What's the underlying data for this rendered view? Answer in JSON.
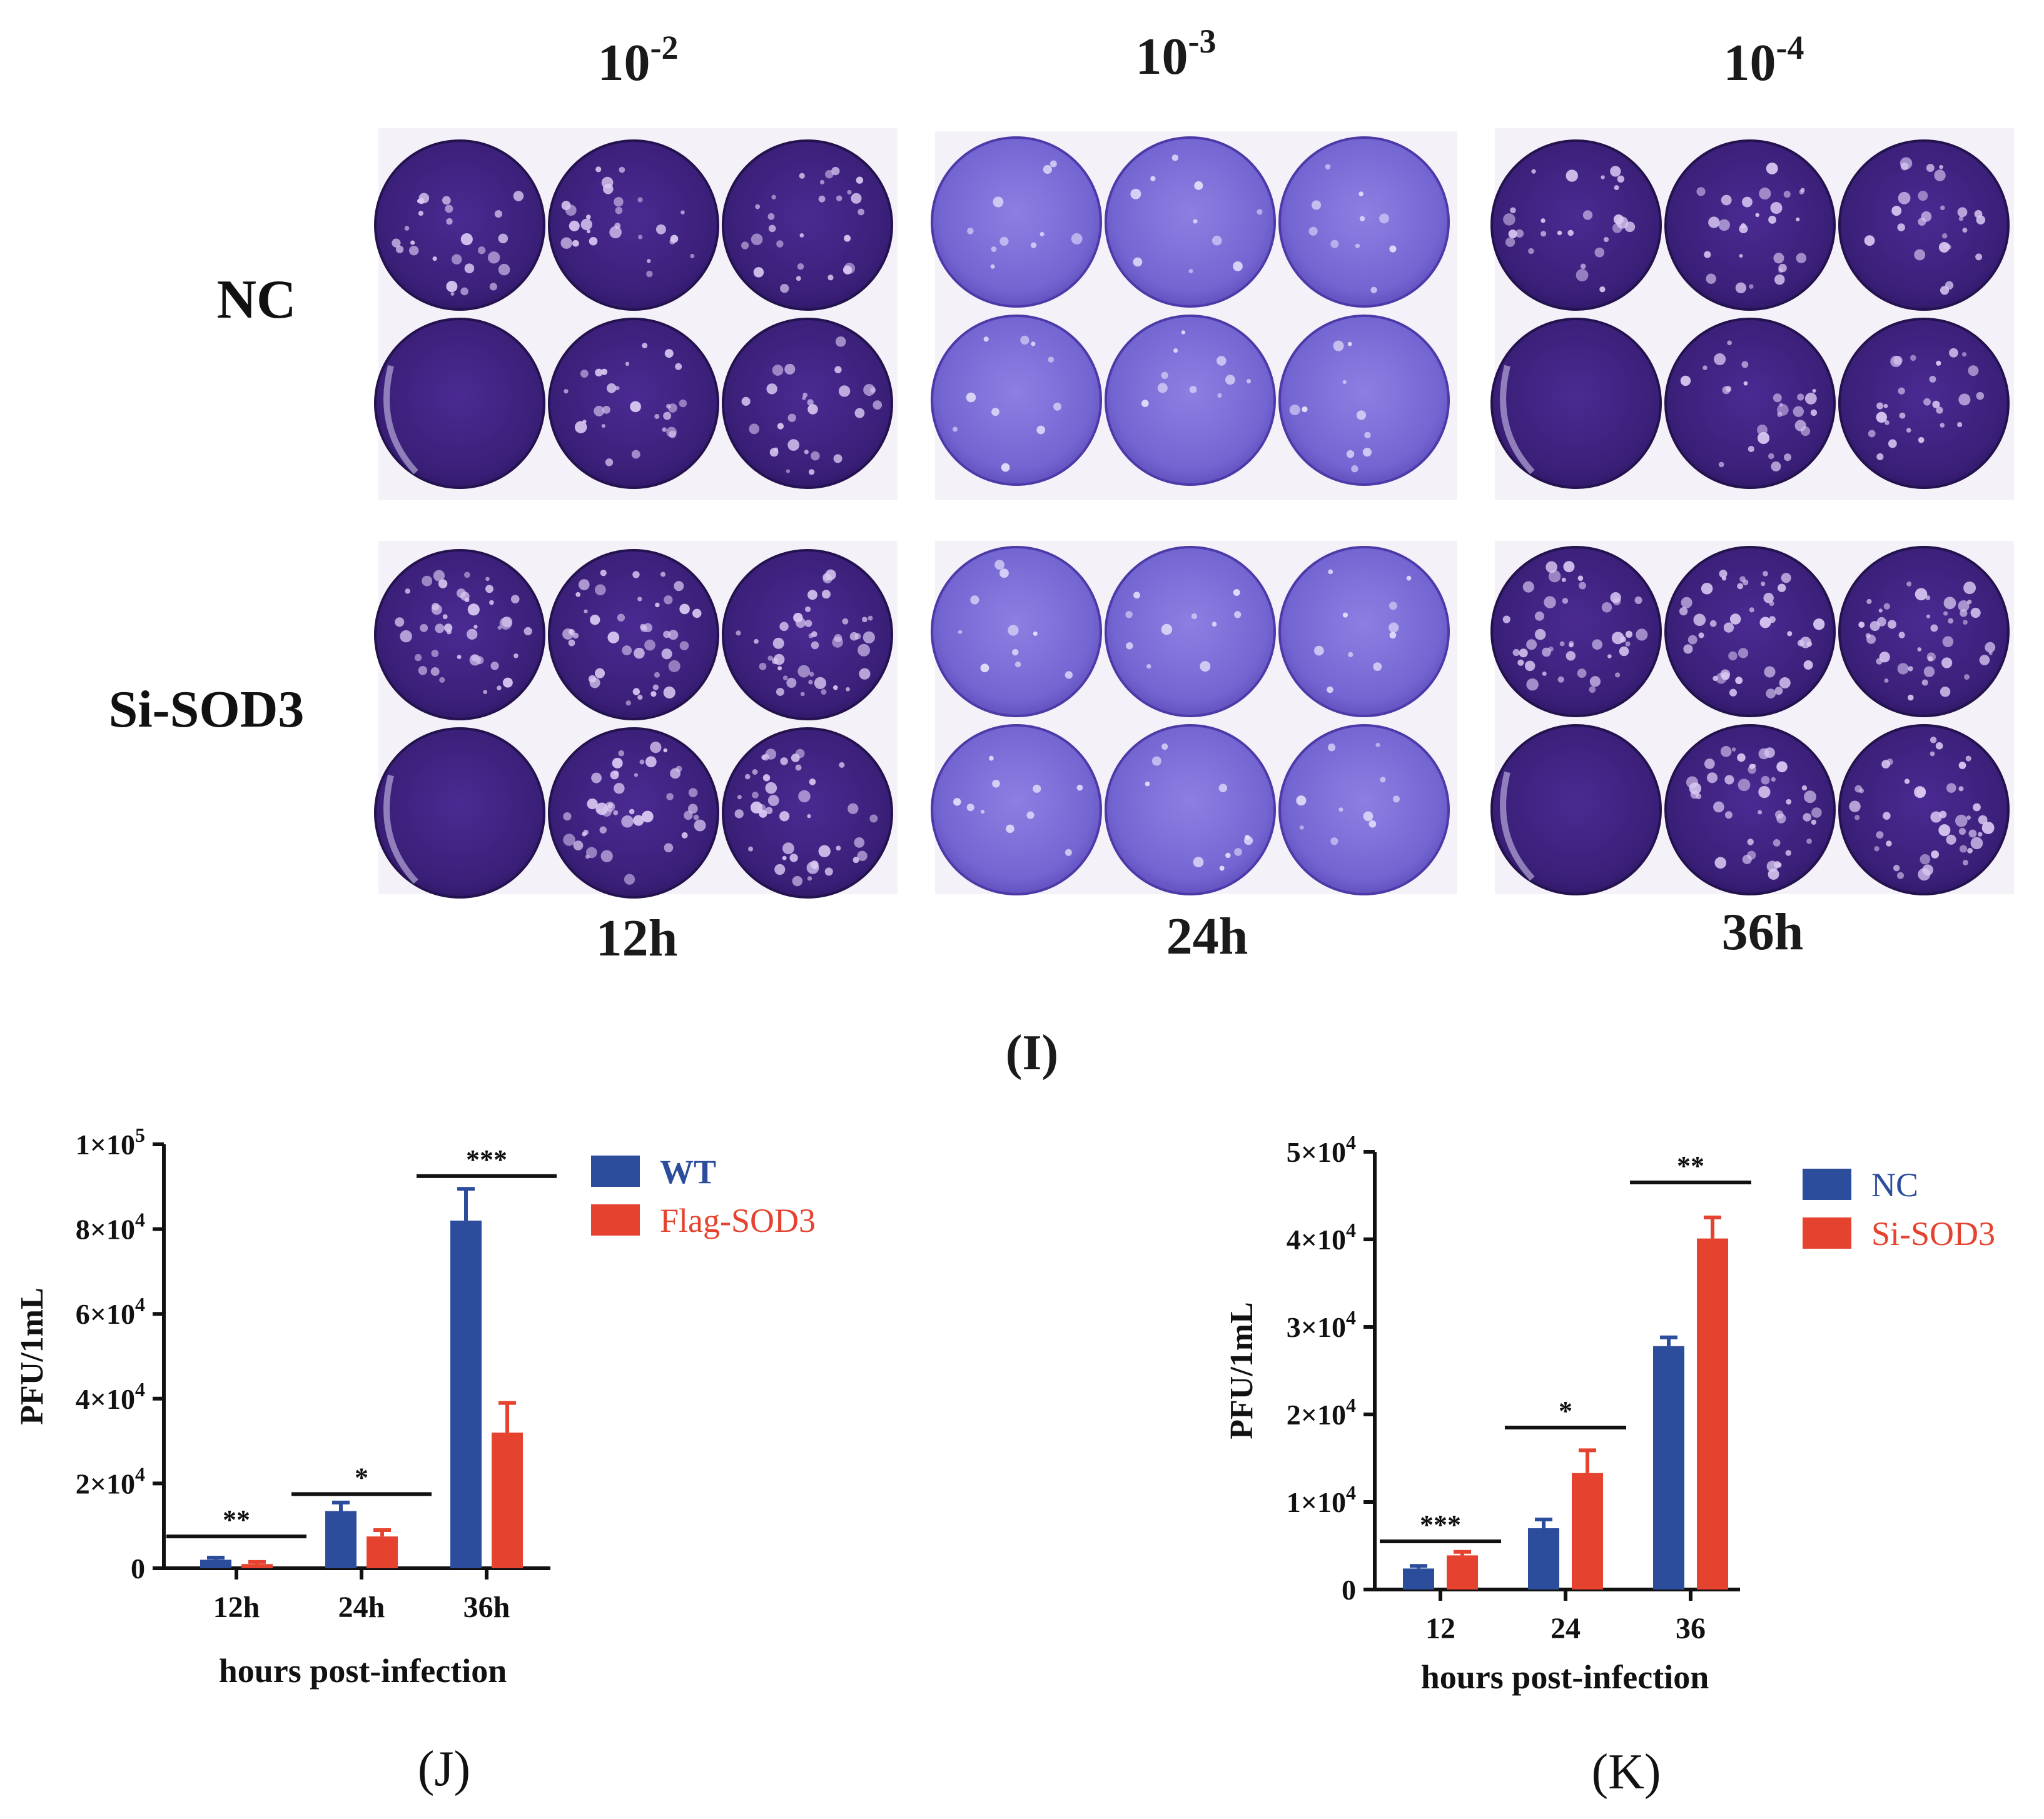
{
  "colors": {
    "blue": "#2c4d9c",
    "red": "#e5432f",
    "plate_dark": "#3a1f78",
    "plate_light": "#7f6fd8"
  },
  "panel_I": {
    "dilutions": [
      {
        "base": "10",
        "exp": "-2"
      },
      {
        "base": "10",
        "exp": "-3"
      },
      {
        "base": "10",
        "exp": "-4"
      }
    ],
    "row_labels": [
      "NC",
      "Si-SOD3"
    ],
    "times": [
      "12h",
      "24h",
      "36h"
    ],
    "label": "(I)"
  },
  "chart_data": [
    {
      "type": "bar",
      "panel_label": "(J)",
      "categories": [
        "12h",
        "24h",
        "36h"
      ],
      "series": [
        {
          "name": "WT",
          "values": [
            2000,
            13500,
            82000
          ],
          "errors": [
            500,
            2000,
            7500
          ]
        },
        {
          "name": "Flag-SOD3",
          "values": [
            1000,
            7500,
            32000
          ],
          "errors": [
            500,
            1500,
            7000
          ]
        }
      ],
      "ylim": [
        0,
        100000
      ],
      "yticks": [
        {
          "value": 0,
          "mant": "0",
          "exp": ""
        },
        {
          "value": 20000,
          "mant": "2×10",
          "exp": "4"
        },
        {
          "value": 40000,
          "mant": "4×10",
          "exp": "4"
        },
        {
          "value": 60000,
          "mant": "6×10",
          "exp": "4"
        },
        {
          "value": 80000,
          "mant": "8×10",
          "exp": "4"
        },
        {
          "value": 100000,
          "mant": "1×10",
          "exp": "5"
        }
      ],
      "ylabel": "PFU/1mL",
      "xlabel": "hours post-infection",
      "significance": [
        {
          "category": 0,
          "text": "**",
          "level": 7500
        },
        {
          "category": 1,
          "text": "*",
          "level": 17500
        },
        {
          "category": 2,
          "text": "***",
          "level": 92500
        }
      ],
      "legend": "top-right"
    },
    {
      "type": "bar",
      "panel_label": "(K)",
      "categories": [
        "12",
        "24",
        "36"
      ],
      "series": [
        {
          "name": "NC",
          "values": [
            2400,
            7000,
            27800
          ],
          "errors": [
            300,
            1000,
            1000
          ]
        },
        {
          "name": "Si-SOD3",
          "values": [
            3900,
            13300,
            40100
          ],
          "errors": [
            400,
            2600,
            2400
          ]
        }
      ],
      "ylim": [
        0,
        50000
      ],
      "yticks": [
        {
          "value": 0,
          "mant": "0",
          "exp": ""
        },
        {
          "value": 10000,
          "mant": "1×10",
          "exp": "4"
        },
        {
          "value": 20000,
          "mant": "2×10",
          "exp": "4"
        },
        {
          "value": 30000,
          "mant": "3×10",
          "exp": "4"
        },
        {
          "value": 40000,
          "mant": "4×10",
          "exp": "4"
        },
        {
          "value": 50000,
          "mant": "5×10",
          "exp": "4"
        }
      ],
      "ylabel": "PFU/1mL",
      "xlabel": "hours post-infection",
      "significance": [
        {
          "category": 0,
          "text": "***",
          "level": 5500
        },
        {
          "category": 1,
          "text": "*",
          "level": 18500
        },
        {
          "category": 2,
          "text": "**",
          "level": 46500
        }
      ],
      "legend": "top-right"
    }
  ]
}
